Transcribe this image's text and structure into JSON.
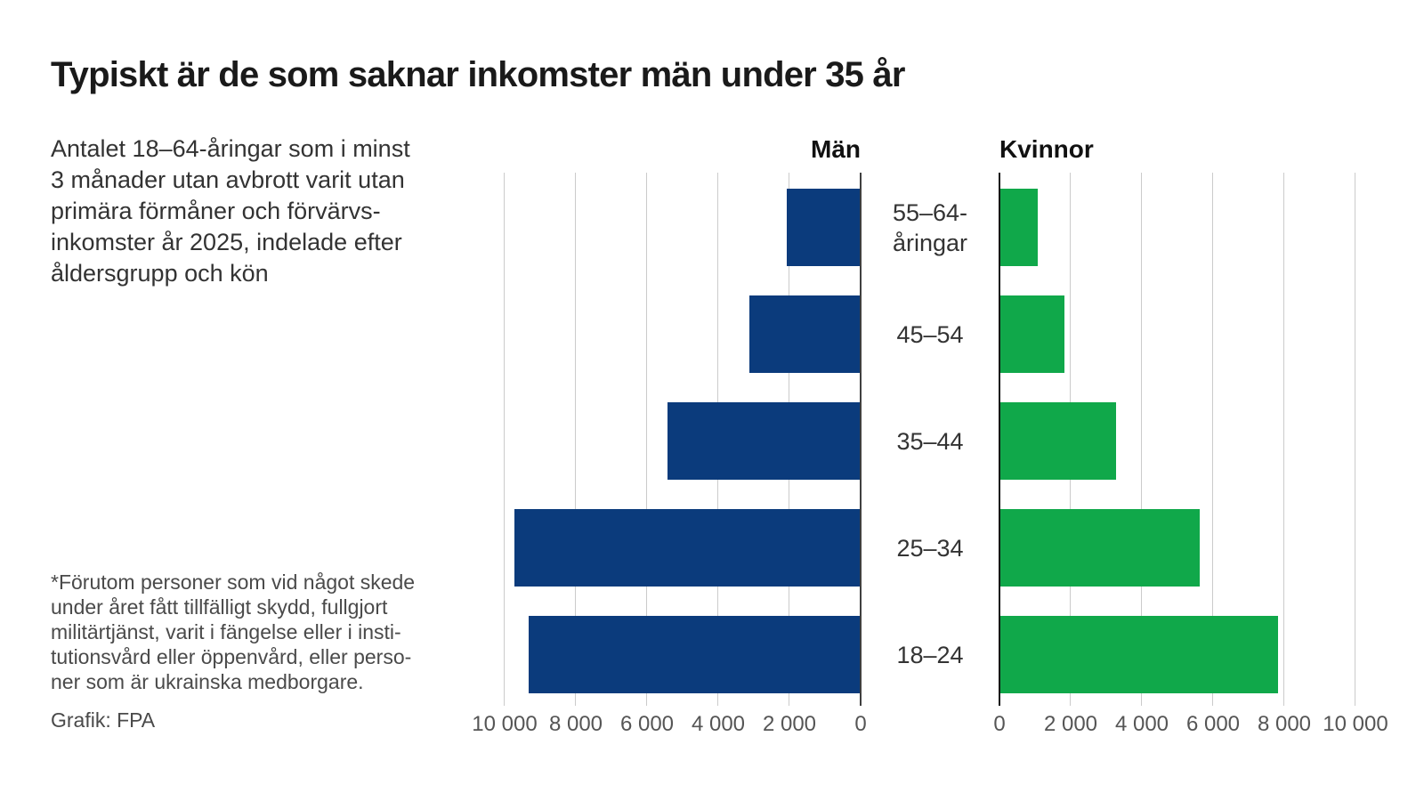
{
  "page": {
    "title": "Typiskt är de som saknar inkomster män under 35 år",
    "description": "Antalet 18–64-åringar som i minst\n3 månader utan avbrott varit utan\nprimära förmåner och förvärvs-\ninkomster år 2025, indelade efter\nåldersgrupp och kön",
    "footnote": "*Förutom personer som vid något skede\nunder året fått tillfälligt skydd, fullgjort\nmilitärtjänst, varit i fängelse eller i insti-\ntutionsvård eller öppenvård, eller perso-\nner som är ukrainska medborgare.",
    "credit": "Grafik: FPA"
  },
  "chart_data": {
    "type": "bar",
    "orientation": "horizontal",
    "layout": "diverging-population-pyramid",
    "title": "Typiskt är de som saknar inkomster män under 35 år",
    "categories": [
      "55–64-åringar",
      "45–54",
      "35–44",
      "25–34",
      "18–24"
    ],
    "category_display_lines": [
      [
        "55–64-",
        "åringar"
      ],
      [
        "45–54"
      ],
      [
        "35–44"
      ],
      [
        "25–34"
      ],
      [
        "18–24"
      ]
    ],
    "series": [
      {
        "name": "Män",
        "side": "left",
        "color": "#0b3b7c",
        "values": [
          2050,
          3100,
          5400,
          9700,
          9300
        ]
      },
      {
        "name": "Kvinnor",
        "side": "right",
        "color": "#10a84a",
        "values": [
          1050,
          1800,
          3250,
          5600,
          7800
        ]
      }
    ],
    "value_axis": {
      "min": 0,
      "max": 10000,
      "ticks": [
        {
          "value": 0,
          "label": "0"
        },
        {
          "value": 2000,
          "label": "2 000"
        },
        {
          "value": 4000,
          "label": "4 000"
        },
        {
          "value": 6000,
          "label": "6 000"
        },
        {
          "value": 8000,
          "label": "8 000"
        },
        {
          "value": 10000,
          "label": "10 000"
        }
      ]
    },
    "grid": true,
    "legend_position": "column-headers"
  }
}
